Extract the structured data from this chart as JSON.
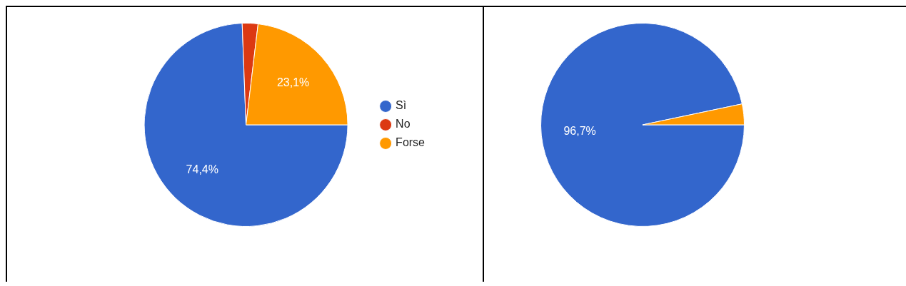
{
  "chart_data": [
    {
      "type": "pie",
      "categories": [
        "Sì",
        "No",
        "Forse"
      ],
      "values": [
        74.4,
        2.5,
        23.1
      ],
      "colors": [
        "#3366cc",
        "#dc3912",
        "#ff9900"
      ],
      "value_labels": [
        "74,4%",
        null,
        "23,1%"
      ],
      "legend": "right"
    },
    {
      "type": "pie",
      "categories": [
        null,
        null
      ],
      "values": [
        96.7,
        3.3
      ],
      "colors": [
        "#3366cc",
        "#ff9900"
      ],
      "value_labels": [
        "96,7%",
        null
      ],
      "legend": false
    }
  ]
}
